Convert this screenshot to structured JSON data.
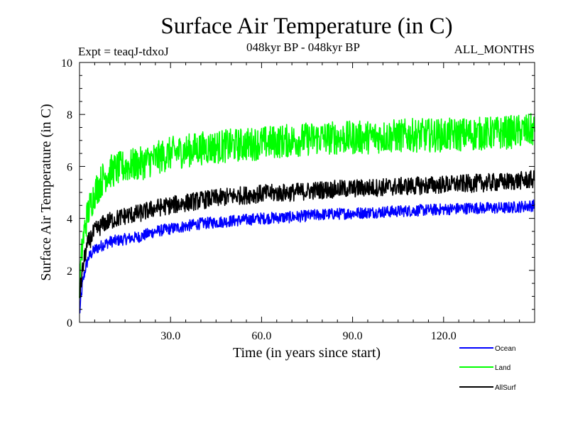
{
  "chart_data": {
    "type": "line",
    "title": "Surface Air Temperature (in C)",
    "subtitle": "048kyr BP - 048kyr BP",
    "experiment": "Expt = teaqJ-tdxoJ",
    "months_label": "ALL_MONTHS",
    "xlabel": "Time (in years since start)",
    "ylabel": "Surface Air Temperature (in C)",
    "xlim": [
      0,
      150
    ],
    "ylim": [
      0,
      10
    ],
    "xticks": [
      30,
      60,
      90,
      120
    ],
    "xtick_labels": [
      "30.0",
      "60.0",
      "90.0",
      "120.0"
    ],
    "yticks": [
      0,
      2,
      4,
      6,
      8,
      10
    ],
    "ytick_labels": [
      "0",
      "2",
      "4",
      "6",
      "8",
      "10"
    ],
    "series": [
      {
        "name": "Ocean",
        "color": "#0000ff",
        "x": [
          0,
          1,
          2,
          3,
          5,
          8,
          10,
          15,
          20,
          25,
          30,
          40,
          50,
          60,
          70,
          80,
          90,
          100,
          110,
          120,
          130,
          140,
          150
        ],
        "y": [
          0.3,
          1.5,
          2.1,
          2.5,
          2.8,
          3.0,
          3.1,
          3.2,
          3.3,
          3.5,
          3.6,
          3.8,
          3.9,
          4.0,
          4.05,
          4.15,
          4.2,
          4.25,
          4.3,
          4.35,
          4.4,
          4.4,
          4.5
        ]
      },
      {
        "name": "Land",
        "color": "#00ff00",
        "x": [
          0,
          1,
          2,
          3,
          5,
          8,
          10,
          15,
          20,
          25,
          30,
          40,
          50,
          60,
          70,
          80,
          90,
          100,
          110,
          120,
          130,
          140,
          150
        ],
        "y": [
          1.5,
          3.0,
          3.8,
          4.3,
          5.0,
          5.6,
          5.8,
          6.0,
          6.1,
          6.3,
          6.5,
          6.7,
          6.8,
          6.9,
          7.0,
          7.1,
          7.1,
          7.15,
          7.2,
          7.2,
          7.25,
          7.3,
          7.4
        ]
      },
      {
        "name": "AllSurf",
        "color": "#000000",
        "x": [
          0,
          1,
          2,
          3,
          5,
          8,
          10,
          15,
          20,
          25,
          30,
          40,
          50,
          60,
          70,
          80,
          90,
          100,
          110,
          120,
          130,
          140,
          150
        ],
        "y": [
          1.0,
          2.0,
          2.7,
          3.1,
          3.5,
          3.8,
          3.9,
          4.1,
          4.2,
          4.4,
          4.5,
          4.7,
          4.85,
          4.95,
          5.0,
          5.1,
          5.15,
          5.2,
          5.25,
          5.3,
          5.35,
          5.4,
          5.5
        ]
      }
    ]
  }
}
